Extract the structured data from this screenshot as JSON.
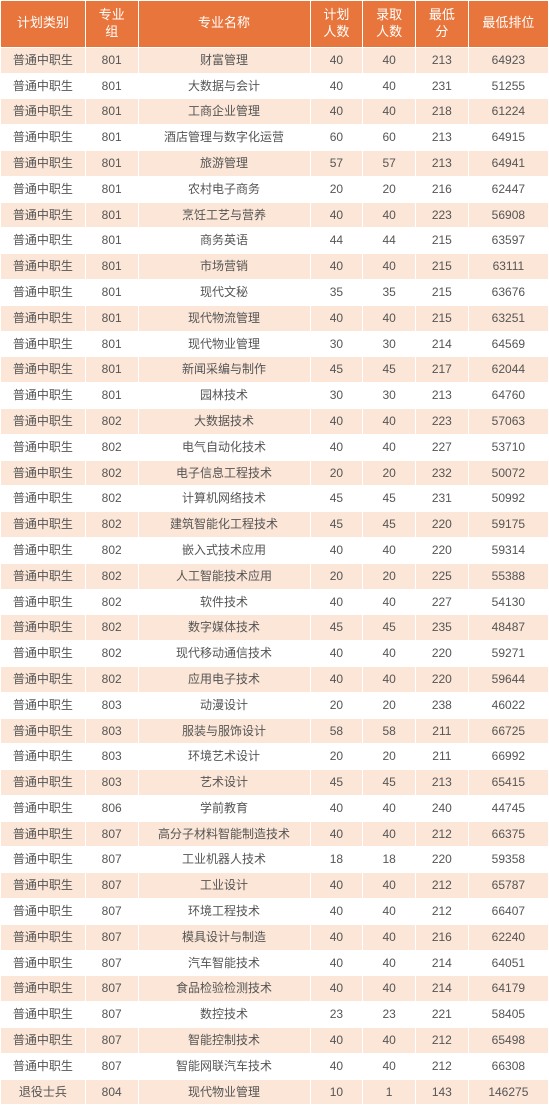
{
  "table": {
    "header_bg": "#e8763c",
    "header_fg": "#ffffff",
    "row_odd_bg": "#fbe6d7",
    "row_even_bg": "#ffffff",
    "text_color": "#555555",
    "header_fontsize": 13,
    "body_fontsize": 12,
    "columns": [
      {
        "key": "category",
        "label": "计划类别",
        "width": 74
      },
      {
        "key": "group",
        "label": "专业组",
        "width": 46,
        "two_line": "专业\n组"
      },
      {
        "key": "name",
        "label": "专业名称",
        "width": 150
      },
      {
        "key": "plan",
        "label": "计划人数",
        "width": 46,
        "two_line": "计划\n人数"
      },
      {
        "key": "admit",
        "label": "录取人数",
        "width": 46,
        "two_line": "录取\n人数"
      },
      {
        "key": "min",
        "label": "最低分",
        "width": 46,
        "two_line": "最低\n分"
      },
      {
        "key": "rank",
        "label": "最低排位",
        "width": 70
      }
    ],
    "rows": [
      [
        "普通中职生",
        "801",
        "财富管理",
        "40",
        "40",
        "213",
        "64923"
      ],
      [
        "普通中职生",
        "801",
        "大数据与会计",
        "40",
        "40",
        "231",
        "51255"
      ],
      [
        "普通中职生",
        "801",
        "工商企业管理",
        "40",
        "40",
        "218",
        "61224"
      ],
      [
        "普通中职生",
        "801",
        "酒店管理与数字化运营",
        "60",
        "60",
        "213",
        "64915"
      ],
      [
        "普通中职生",
        "801",
        "旅游管理",
        "57",
        "57",
        "213",
        "64941"
      ],
      [
        "普通中职生",
        "801",
        "农村电子商务",
        "20",
        "20",
        "216",
        "62447"
      ],
      [
        "普通中职生",
        "801",
        "烹饪工艺与营养",
        "40",
        "40",
        "223",
        "56908"
      ],
      [
        "普通中职生",
        "801",
        "商务英语",
        "44",
        "44",
        "215",
        "63597"
      ],
      [
        "普通中职生",
        "801",
        "市场营销",
        "40",
        "40",
        "215",
        "63111"
      ],
      [
        "普通中职生",
        "801",
        "现代文秘",
        "35",
        "35",
        "215",
        "63676"
      ],
      [
        "普通中职生",
        "801",
        "现代物流管理",
        "40",
        "40",
        "215",
        "63251"
      ],
      [
        "普通中职生",
        "801",
        "现代物业管理",
        "30",
        "30",
        "214",
        "64569"
      ],
      [
        "普通中职生",
        "801",
        "新闻采编与制作",
        "45",
        "45",
        "217",
        "62044"
      ],
      [
        "普通中职生",
        "801",
        "园林技术",
        "30",
        "30",
        "213",
        "64760"
      ],
      [
        "普通中职生",
        "802",
        "大数据技术",
        "40",
        "40",
        "223",
        "57063"
      ],
      [
        "普通中职生",
        "802",
        "电气自动化技术",
        "40",
        "40",
        "227",
        "53710"
      ],
      [
        "普通中职生",
        "802",
        "电子信息工程技术",
        "20",
        "20",
        "232",
        "50072"
      ],
      [
        "普通中职生",
        "802",
        "计算机网络技术",
        "45",
        "45",
        "231",
        "50992"
      ],
      [
        "普通中职生",
        "802",
        "建筑智能化工程技术",
        "45",
        "45",
        "220",
        "59175"
      ],
      [
        "普通中职生",
        "802",
        "嵌入式技术应用",
        "40",
        "40",
        "220",
        "59314"
      ],
      [
        "普通中职生",
        "802",
        "人工智能技术应用",
        "20",
        "20",
        "225",
        "55388"
      ],
      [
        "普通中职生",
        "802",
        "软件技术",
        "40",
        "40",
        "227",
        "54130"
      ],
      [
        "普通中职生",
        "802",
        "数字媒体技术",
        "45",
        "45",
        "235",
        "48487"
      ],
      [
        "普通中职生",
        "802",
        "现代移动通信技术",
        "40",
        "40",
        "220",
        "59271"
      ],
      [
        "普通中职生",
        "802",
        "应用电子技术",
        "40",
        "40",
        "220",
        "59644"
      ],
      [
        "普通中职生",
        "803",
        "动漫设计",
        "20",
        "20",
        "238",
        "46022"
      ],
      [
        "普通中职生",
        "803",
        "服装与服饰设计",
        "58",
        "58",
        "211",
        "66725"
      ],
      [
        "普通中职生",
        "803",
        "环境艺术设计",
        "20",
        "20",
        "211",
        "66992"
      ],
      [
        "普通中职生",
        "803",
        "艺术设计",
        "45",
        "45",
        "213",
        "65415"
      ],
      [
        "普通中职生",
        "806",
        "学前教育",
        "40",
        "40",
        "240",
        "44745"
      ],
      [
        "普通中职生",
        "807",
        "高分子材料智能制造技术",
        "40",
        "40",
        "212",
        "66375"
      ],
      [
        "普通中职生",
        "807",
        "工业机器人技术",
        "18",
        "18",
        "220",
        "59358"
      ],
      [
        "普通中职生",
        "807",
        "工业设计",
        "40",
        "40",
        "212",
        "65787"
      ],
      [
        "普通中职生",
        "807",
        "环境工程技术",
        "40",
        "40",
        "212",
        "66407"
      ],
      [
        "普通中职生",
        "807",
        "模具设计与制造",
        "40",
        "40",
        "216",
        "62240"
      ],
      [
        "普通中职生",
        "807",
        "汽车智能技术",
        "40",
        "40",
        "214",
        "64051"
      ],
      [
        "普通中职生",
        "807",
        "食品检验检测技术",
        "40",
        "40",
        "214",
        "64179"
      ],
      [
        "普通中职生",
        "807",
        "数控技术",
        "23",
        "23",
        "221",
        "58405"
      ],
      [
        "普通中职生",
        "807",
        "智能控制技术",
        "40",
        "40",
        "212",
        "65498"
      ],
      [
        "普通中职生",
        "807",
        "智能网联汽车技术",
        "40",
        "40",
        "212",
        "66308"
      ],
      [
        "退役士兵",
        "804",
        "现代物业管理",
        "10",
        "1",
        "143",
        "146275"
      ]
    ]
  }
}
